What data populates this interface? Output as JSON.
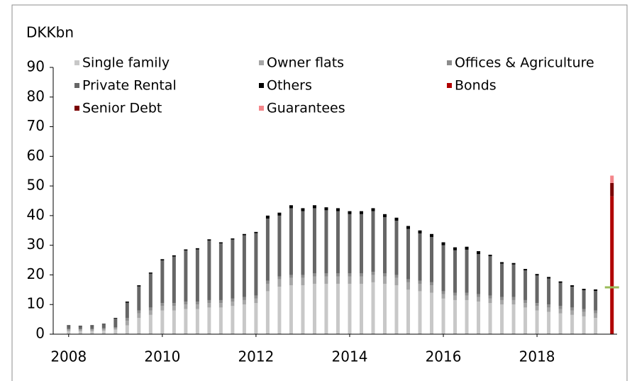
{
  "chart_data": {
    "type": "stacked_bar",
    "y_axis_label": "DKKbn",
    "x": [
      2008,
      2008.25,
      2008.5,
      2008.75,
      2009,
      2009.25,
      2009.5,
      2009.75,
      2010,
      2010.25,
      2010.5,
      2010.75,
      2011,
      2011.25,
      2011.5,
      2011.75,
      2012,
      2012.25,
      2012.5,
      2012.75,
      2013,
      2013.25,
      2013.5,
      2013.75,
      2014,
      2014.25,
      2014.5,
      2014.75,
      2015,
      2015.25,
      2015.5,
      2015.75,
      2016,
      2016.25,
      2016.5,
      2016.75,
      2017,
      2017.25,
      2017.5,
      2017.75,
      2018,
      2018.25,
      2018.5,
      2018.75,
      2019,
      2019.25,
      2019.6
    ],
    "series": [
      {
        "name": "Single family",
        "color": "#c8c8c8",
        "values": [
          1.0,
          1.0,
          1.0,
          1.2,
          1.5,
          3.0,
          5.5,
          6.5,
          8.0,
          8.0,
          8.5,
          8.5,
          9.0,
          9.0,
          9.5,
          10.0,
          10.5,
          14.5,
          16.0,
          16.5,
          16.5,
          17.0,
          17.0,
          17.0,
          17.0,
          17.0,
          17.5,
          17.0,
          16.5,
          15.0,
          14.5,
          14.0,
          12.0,
          11.5,
          11.5,
          11.0,
          10.5,
          10.0,
          10.0,
          9.0,
          8.0,
          7.5,
          7.0,
          6.5,
          6.0,
          5.5,
          null
        ]
      },
      {
        "name": "Owner flats",
        "color": "#a6a6a6",
        "values": [
          0.5,
          0.5,
          0.5,
          0.5,
          0.5,
          1.5,
          1.5,
          1.5,
          1.5,
          1.5,
          1.5,
          1.5,
          1.5,
          1.5,
          1.5,
          1.5,
          1.5,
          2.5,
          2.5,
          2.5,
          2.5,
          2.5,
          2.5,
          2.5,
          2.5,
          2.5,
          2.5,
          2.5,
          2.5,
          2.5,
          2.5,
          2.5,
          1.5,
          1.5,
          1.5,
          1.5,
          1.5,
          1.5,
          1.5,
          1.5,
          1.5,
          1.5,
          1.5,
          1.5,
          1.5,
          1.5,
          null
        ]
      },
      {
        "name": "Offices & Agriculture",
        "color": "#8c8c8c",
        "values": [
          0.3,
          0.3,
          0.3,
          0.3,
          0.3,
          1.0,
          1.0,
          1.0,
          1.0,
          1.0,
          1.0,
          1.0,
          1.0,
          1.0,
          1.0,
          1.0,
          1.0,
          1.0,
          1.0,
          1.0,
          1.0,
          1.0,
          1.0,
          1.0,
          1.0,
          1.0,
          1.0,
          1.0,
          1.0,
          1.0,
          1.0,
          1.0,
          1.0,
          1.0,
          1.0,
          1.0,
          1.0,
          1.0,
          1.0,
          1.0,
          1.0,
          1.0,
          1.0,
          1.0,
          1.0,
          1.0,
          null
        ]
      },
      {
        "name": "Private Rental",
        "color": "#666666",
        "values": [
          1.0,
          0.8,
          1.0,
          1.3,
          3.0,
          5.1,
          8.1,
          11.4,
          14.4,
          15.7,
          17.2,
          17.6,
          20.1,
          19.1,
          19.9,
          20.9,
          21.1,
          21.0,
          20.5,
          22.5,
          21.5,
          22.0,
          21.3,
          21.0,
          20.0,
          20.0,
          20.5,
          19.0,
          18.3,
          17.0,
          16.0,
          15.3,
          15.5,
          14.3,
          14.5,
          13.5,
          13.3,
          11.3,
          11.0,
          10.0,
          9.3,
          8.8,
          7.8,
          7.0,
          6.3,
          6.6,
          null
        ]
      },
      {
        "name": "Others",
        "color": "#000000",
        "values": [
          0.2,
          0.2,
          0.2,
          0.2,
          0.2,
          0.4,
          0.4,
          0.4,
          0.4,
          0.4,
          0.4,
          0.4,
          0.4,
          0.4,
          0.4,
          0.4,
          0.4,
          1.0,
          1.0,
          1.0,
          1.0,
          1.0,
          1.0,
          1.0,
          1.0,
          1.0,
          1.0,
          1.0,
          1.0,
          1.0,
          1.0,
          1.0,
          1.0,
          1.0,
          1.0,
          1.0,
          0.5,
          0.5,
          0.5,
          0.5,
          0.5,
          0.5,
          0.5,
          0.5,
          0.5,
          0.5,
          null
        ]
      },
      {
        "name": "Bonds",
        "color": "#b00000",
        "values": [
          null,
          null,
          null,
          null,
          null,
          null,
          null,
          null,
          null,
          null,
          null,
          null,
          null,
          null,
          null,
          null,
          null,
          null,
          null,
          null,
          null,
          null,
          null,
          null,
          null,
          null,
          null,
          null,
          null,
          null,
          null,
          null,
          null,
          null,
          null,
          null,
          null,
          null,
          null,
          null,
          null,
          null,
          null,
          null,
          null,
          null,
          46.5
        ]
      },
      {
        "name": "Senior Debt",
        "color": "#7a0000",
        "values": [
          null,
          null,
          null,
          null,
          null,
          null,
          null,
          null,
          null,
          null,
          null,
          null,
          null,
          null,
          null,
          null,
          null,
          null,
          null,
          null,
          null,
          null,
          null,
          null,
          null,
          null,
          null,
          null,
          null,
          null,
          null,
          null,
          null,
          null,
          null,
          null,
          null,
          null,
          null,
          null,
          null,
          null,
          null,
          null,
          null,
          null,
          4.5
        ]
      },
      {
        "name": "Guarantees",
        "color": "#f4868a",
        "values": [
          null,
          null,
          null,
          null,
          null,
          null,
          null,
          null,
          null,
          null,
          null,
          null,
          null,
          null,
          null,
          null,
          null,
          null,
          null,
          null,
          null,
          null,
          null,
          null,
          null,
          null,
          null,
          null,
          null,
          null,
          null,
          null,
          null,
          null,
          null,
          null,
          null,
          null,
          null,
          null,
          null,
          null,
          null,
          null,
          null,
          null,
          2.5
        ]
      }
    ],
    "target_marker": {
      "x": 2019.6,
      "value": 15.8,
      "color": "#9bbb59"
    },
    "xlim": [
      2007.67,
      2019.71
    ],
    "xticks": [
      2008,
      2010,
      2012,
      2014,
      2016,
      2018
    ],
    "ylim": [
      0,
      90
    ],
    "yticks": [
      0,
      10,
      20,
      30,
      40,
      50,
      60,
      70,
      80,
      90
    ],
    "grid": false,
    "legend": "top"
  }
}
